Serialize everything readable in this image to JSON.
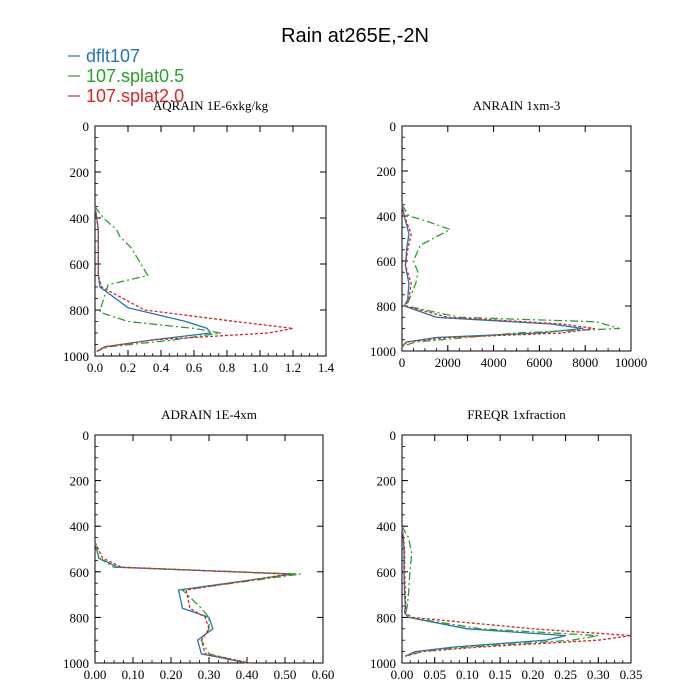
{
  "figure_title": "Rain at265E,-2N",
  "legend": [
    {
      "name": "dflt107",
      "color": "#1f77b4"
    },
    {
      "name": "107.splat0.5",
      "color": "#2ca02c"
    },
    {
      "name": "107.splat2.0",
      "color": "#d62728"
    }
  ],
  "chart_data": [
    {
      "type": "line",
      "title": "AQRAIN  1E-6xkg/kg",
      "xlim": [
        0,
        1.4
      ],
      "ylim": [
        1000,
        0
      ],
      "xticks": [
        "0.0",
        "0.2",
        "0.4",
        "0.6",
        "0.8",
        "1.0",
        "1.2",
        "1.4"
      ],
      "yticks": [
        "0",
        "200",
        "400",
        "600",
        "800",
        "1000"
      ],
      "series": [
        {
          "name": "dflt107",
          "x": [
            0,
            0.01,
            0.02,
            0.02,
            0.02,
            0.02,
            0.02,
            0.03,
            0.2,
            0.55,
            0.68,
            0.7,
            0.35,
            0.06,
            0.01
          ],
          "y": [
            350,
            400,
            450,
            500,
            550,
            600,
            650,
            700,
            790,
            850,
            880,
            900,
            930,
            960,
            980
          ]
        },
        {
          "name": "107.splat0.5",
          "x": [
            0,
            0.05,
            0.13,
            0.15,
            0.22,
            0.32,
            0.08,
            0.04,
            0.03,
            0.2,
            0.6,
            0.76,
            0.48,
            0.08,
            0.01
          ],
          "y": [
            350,
            400,
            450,
            480,
            530,
            650,
            690,
            780,
            810,
            850,
            880,
            900,
            930,
            960,
            980
          ]
        },
        {
          "name": "107.splat2.0",
          "x": [
            0,
            0.01,
            0.02,
            0.02,
            0.02,
            0.02,
            0.02,
            0.04,
            0.3,
            0.85,
            1.2,
            1.05,
            0.35,
            0.06,
            0.01
          ],
          "y": [
            350,
            400,
            450,
            500,
            550,
            600,
            650,
            700,
            800,
            850,
            880,
            900,
            930,
            960,
            980
          ]
        }
      ]
    },
    {
      "type": "line",
      "title": "ANRAIN  1xm-3",
      "xlim": [
        0,
        10000
      ],
      "ylim": [
        1000,
        0
      ],
      "xticks": [
        "0",
        "2000",
        "4000",
        "6000",
        "8000",
        "10000"
      ],
      "yticks": [
        "0",
        "200",
        "400",
        "600",
        "800",
        "1000"
      ],
      "series": [
        {
          "name": "dflt107",
          "x": [
            0,
            100,
            300,
            200,
            150,
            300,
            250,
            100,
            1500,
            6500,
            7900,
            6000,
            1500,
            200,
            0
          ],
          "y": [
            350,
            400,
            480,
            550,
            620,
            700,
            770,
            800,
            850,
            880,
            900,
            920,
            940,
            960,
            980
          ]
        },
        {
          "name": "107.splat0.5",
          "x": [
            0,
            300,
            1000,
            2100,
            800,
            500,
            700,
            600,
            200,
            2500,
            8500,
            9500,
            5000,
            600,
            0
          ],
          "y": [
            350,
            400,
            420,
            460,
            530,
            600,
            650,
            700,
            800,
            850,
            870,
            900,
            920,
            960,
            980
          ]
        },
        {
          "name": "107.splat2.0",
          "x": [
            0,
            100,
            400,
            250,
            150,
            400,
            300,
            150,
            2000,
            7000,
            8400,
            7000,
            2000,
            200,
            0
          ],
          "y": [
            350,
            400,
            480,
            550,
            620,
            700,
            770,
            800,
            850,
            880,
            900,
            920,
            940,
            960,
            980
          ]
        }
      ]
    },
    {
      "type": "line",
      "title": "ADRAIN  1E-4xm",
      "xlim": [
        0,
        0.6
      ],
      "ylim": [
        1000,
        0
      ],
      "xticks": [
        "0.00",
        "0.10",
        "0.20",
        "0.30",
        "0.40",
        "0.50",
        "0.60"
      ],
      "yticks": [
        "0",
        "200",
        "400",
        "600",
        "800",
        "1000"
      ],
      "series": [
        {
          "name": "dflt107",
          "x": [
            0,
            0.01,
            0.06,
            0.52,
            0.22,
            0.23,
            0.3,
            0.31,
            0.27,
            0.28,
            0.4
          ],
          "y": [
            470,
            540,
            580,
            610,
            680,
            760,
            800,
            850,
            900,
            960,
            1000
          ]
        },
        {
          "name": "107.splat0.5",
          "x": [
            0,
            0.01,
            0.05,
            0.54,
            0.23,
            0.28,
            0.3,
            0.3,
            0.28,
            0.3,
            0.4
          ],
          "y": [
            470,
            540,
            580,
            610,
            680,
            760,
            800,
            850,
            900,
            960,
            1000
          ]
        },
        {
          "name": "107.splat2.0",
          "x": [
            0,
            0.02,
            0.07,
            0.51,
            0.24,
            0.25,
            0.29,
            0.3,
            0.28,
            0.29,
            0.41
          ],
          "y": [
            470,
            540,
            580,
            610,
            680,
            760,
            800,
            850,
            900,
            960,
            1000
          ]
        }
      ]
    },
    {
      "type": "line",
      "title": "FREQR  1xfraction",
      "xlim": [
        0,
        0.35
      ],
      "ylim": [
        1000,
        0
      ],
      "xticks": [
        "0.00",
        "0.05",
        "0.10",
        "0.15",
        "0.20",
        "0.25",
        "0.30",
        "0.35"
      ],
      "yticks": [
        "0",
        "200",
        "400",
        "600",
        "800",
        "1000"
      ],
      "series": [
        {
          "name": "dflt107",
          "x": [
            0,
            0.002,
            0.003,
            0.003,
            0.004,
            0.005,
            0.004,
            0.01,
            0.1,
            0.25,
            0.22,
            0.08,
            0.02,
            0.005
          ],
          "y": [
            400,
            450,
            500,
            600,
            700,
            750,
            780,
            800,
            850,
            880,
            900,
            930,
            950,
            970
          ]
        },
        {
          "name": "107.splat0.5",
          "x": [
            0,
            0.01,
            0.015,
            0.012,
            0.01,
            0.008,
            0.006,
            0.01,
            0.12,
            0.3,
            0.26,
            0.1,
            0.03,
            0.005
          ],
          "y": [
            400,
            450,
            520,
            600,
            700,
            750,
            780,
            800,
            850,
            880,
            900,
            930,
            950,
            970
          ]
        },
        {
          "name": "107.splat2.0",
          "x": [
            0,
            0.002,
            0.004,
            0.004,
            0.005,
            0.006,
            0.005,
            0.015,
            0.2,
            0.35,
            0.3,
            0.12,
            0.03,
            0.005
          ],
          "y": [
            400,
            450,
            500,
            600,
            700,
            750,
            780,
            800,
            850,
            880,
            900,
            930,
            950,
            970
          ]
        }
      ]
    }
  ]
}
